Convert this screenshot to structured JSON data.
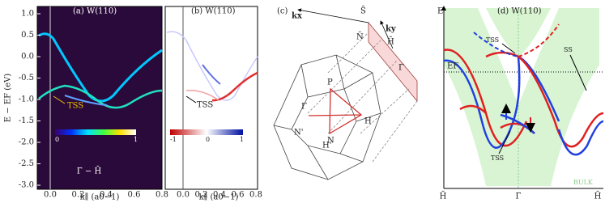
{
  "panel_a": {
    "label": "(a) W(110)",
    "annotation": "TSS",
    "colorbar_ticks": [
      "0",
      "1"
    ],
    "path_label": "Γ̄ − H̄",
    "y_label": "E − EF (eV)",
    "y_ticks": [
      "1.0",
      "0.5",
      "0.0",
      "-0.5",
      "-1.0",
      "-1.5",
      "-2.0",
      "-2.5",
      "-3.0"
    ],
    "x_ticks": [
      "0.0",
      "0.2",
      "0.4",
      "0.6",
      "0.8"
    ],
    "x_label": "k∥ (a0−1)"
  },
  "panel_b": {
    "label": "(b) W(110)",
    "annotation": "TSS",
    "colorbar_ticks": [
      "-1",
      "0",
      "1"
    ],
    "x_ticks": [
      "0.0",
      "0.2",
      "0.4",
      "0.6",
      "0.8"
    ],
    "x_label": "k∥ (a0−1)"
  },
  "panel_c": {
    "label": "(c)",
    "kx": "kx",
    "ky": "ky",
    "S_bar": "S̄",
    "N_bar": "N̄",
    "H_bar": "H̄",
    "Gamma_bar": "Γ̄",
    "P": "P",
    "Gamma": "Γ",
    "H": "H",
    "N": "N",
    "N_prime": "N'",
    "H_prime": "H'"
  },
  "panel_d": {
    "y_axis": "E",
    "label": "(d) W(110)",
    "tss_top": "TSS",
    "ss": "SS",
    "ef": "EF",
    "tss_bottom": "TSS",
    "bulk": "BULK",
    "x_ticks": [
      "H̄",
      "Γ̄",
      "H̄"
    ]
  }
}
